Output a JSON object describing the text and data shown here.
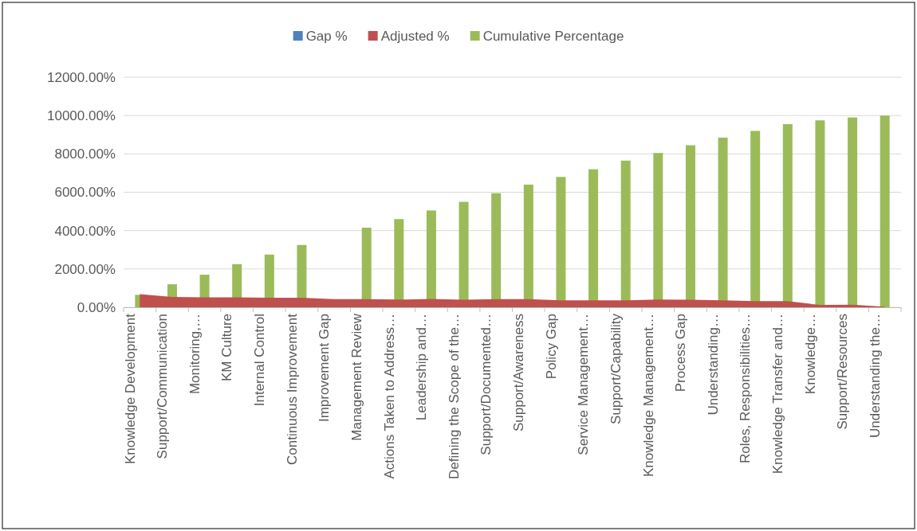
{
  "chart_data": {
    "type": "bar",
    "categories": [
      "Knowledge Development",
      "Support/Communication",
      "Monitoring,…",
      "KM Culture",
      "Internal Control",
      "Continuous Improvement",
      "Improvement Gap",
      "Management Review",
      "Actions Taken to Address…",
      "Leadership and…",
      "Defining the Scope of the…",
      "Support/Documented…",
      "Support/Awareness",
      "Policy Gap",
      "Service Management…",
      "Support/Capability",
      "Knowledge Management…",
      "Process Gap",
      "Understanding…",
      "Roles, Responsibilities…",
      "Knowledge Transfer and…",
      "Knowledge…",
      "Support/Resources",
      "Understanding the…"
    ],
    "series": [
      {
        "name": "Gap %",
        "color": "#4f81bd",
        "values": [
          null,
          null,
          null,
          null,
          null,
          null,
          null,
          null,
          null,
          null,
          null,
          null,
          null,
          null,
          null,
          null,
          null,
          null,
          null,
          null,
          null,
          null,
          null,
          null
        ]
      },
      {
        "name": "Adjusted %",
        "type": "area",
        "color": "#c0504d",
        "values": [
          690,
          540,
          520,
          520,
          500,
          500,
          430,
          430,
          400,
          440,
          390,
          430,
          430,
          360,
          360,
          360,
          400,
          390,
          360,
          320,
          320,
          120,
          130,
          30
        ]
      },
      {
        "name": "Cumulative Percentage",
        "color": "#9bbb59",
        "values": [
          650,
          1200,
          1700,
          2250,
          2750,
          3250,
          null,
          4150,
          4600,
          5050,
          5500,
          5950,
          6400,
          6800,
          7200,
          7650,
          8050,
          8450,
          8850,
          9200,
          9550,
          9750,
          9900,
          10000
        ]
      }
    ],
    "ylim": [
      0,
      12000
    ],
    "yticks": [
      {
        "value": 0,
        "label": "0.00%"
      },
      {
        "value": 2000,
        "label": "2000.00%"
      },
      {
        "value": 4000,
        "label": "4000.00%"
      },
      {
        "value": 6000,
        "label": "6000.00%"
      },
      {
        "value": 8000,
        "label": "8000.00%"
      },
      {
        "value": 10000,
        "label": "10000.00%"
      },
      {
        "value": 12000,
        "label": "12000.00%"
      }
    ],
    "grid": "y",
    "legend": "top"
  }
}
